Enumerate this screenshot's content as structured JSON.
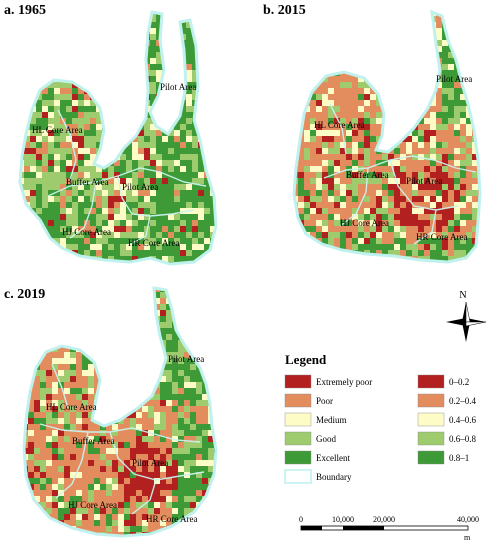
{
  "panels": [
    {
      "id": "a",
      "label": "a. 1965"
    },
    {
      "id": "b",
      "label": "b. 2015"
    },
    {
      "id": "c",
      "label": "c. 2019"
    }
  ],
  "region_labels": {
    "pilot": "Pilot Area",
    "hl": "HL Core Area",
    "buffer": "Buffer Area",
    "hj": "HJ Core Area",
    "hr": "HR Core Area"
  },
  "north_label": "N",
  "legend": {
    "title": "Legend",
    "items": [
      {
        "label": "Extremely poor",
        "range": "0–0.2",
        "color": "#b2201f"
      },
      {
        "label": "Poor",
        "range": "0.2–0.4",
        "color": "#e38d5e"
      },
      {
        "label": "Medium",
        "range": "0.4–0.6",
        "color": "#fdfbc6"
      },
      {
        "label": "Good",
        "range": "0.6–0.8",
        "color": "#9fcb6f"
      },
      {
        "label": "Excellent",
        "range": "0.8–1",
        "color": "#3e9a36"
      }
    ],
    "boundary_label": "Boundary",
    "boundary_color": "#bff1ee"
  },
  "scale_bar": {
    "ticks": [
      "0",
      "10,000",
      "20,000",
      "40,000"
    ],
    "unit": "m"
  }
}
